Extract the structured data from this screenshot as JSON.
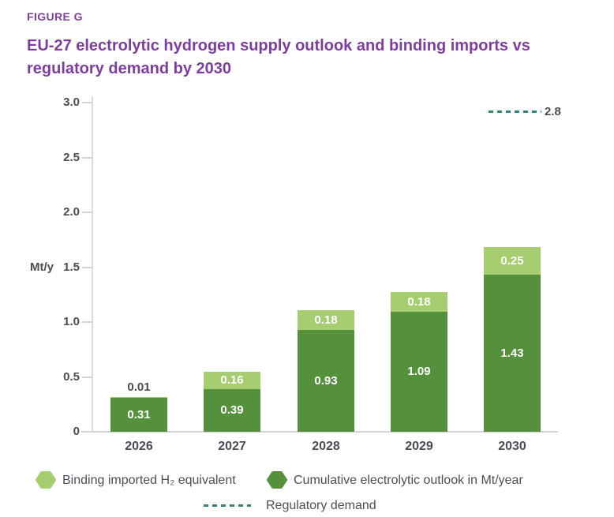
{
  "figure_label": "FIGURE G",
  "title": "EU-27 electrolytic hydrogen supply outlook and binding imports vs regulatory demand by 2030",
  "colors": {
    "purple": "#7d3da1",
    "dark_green": "#55903c",
    "light_green": "#a6ce70",
    "teal": "#2f8577",
    "text_dark": "#4b4c54",
    "axis_gray": "#d4d4d4",
    "bar_label_white": "#ffffff"
  },
  "chart_data": {
    "type": "bar",
    "stacked": true,
    "title": "EU-27 electrolytic hydrogen supply outlook and binding imports vs regulatory demand by 2030",
    "xlabel": "",
    "ylabel": "Mt/y",
    "ylim": [
      0,
      3.0
    ],
    "grid": false,
    "legend_position": "bottom",
    "categories": [
      "2026",
      "2027",
      "2028",
      "2029",
      "2030"
    ],
    "series": [
      {
        "name": "Cumulative electrolytic outlook in Mt/year",
        "color": "#55903c",
        "values": [
          0.31,
          0.39,
          0.93,
          1.09,
          1.43
        ],
        "labels": [
          "0.31",
          "0.39",
          "0.93",
          "1.09",
          "1.43"
        ]
      },
      {
        "name": "Binding imported H₂ equivalent",
        "color": "#a6ce70",
        "values": [
          0.01,
          0.16,
          0.18,
          0.18,
          0.25
        ],
        "labels": [
          "0.01",
          "0.16",
          "0.18",
          "0.18",
          "0.25"
        ]
      }
    ],
    "yticks": [
      {
        "value": 3.0,
        "label": "3.0"
      },
      {
        "value": 2.5,
        "label": "2.5"
      },
      {
        "value": 2.0,
        "label": "2.0"
      },
      {
        "value": 1.5,
        "label": "1.5"
      },
      {
        "value": 1.0,
        "label": "1.0"
      },
      {
        "value": 0.5,
        "label": "0.5"
      },
      {
        "value": 0,
        "label": "0"
      }
    ],
    "reference_line": {
      "name": "Regulatory demand",
      "value": 2.8,
      "label": "2.8",
      "color": "#2f8577",
      "style": "dashed"
    }
  },
  "legend": {
    "items": [
      {
        "label": "Binding imported H₂ equivalent",
        "swatch": "hexagon",
        "color": "#a6ce70"
      },
      {
        "label": "Cumulative electrolytic outlook in Mt/year",
        "swatch": "hexagon",
        "color": "#55903c"
      },
      {
        "label": "Regulatory demand",
        "swatch": "dashed-line",
        "color": "#2f8577"
      }
    ]
  }
}
